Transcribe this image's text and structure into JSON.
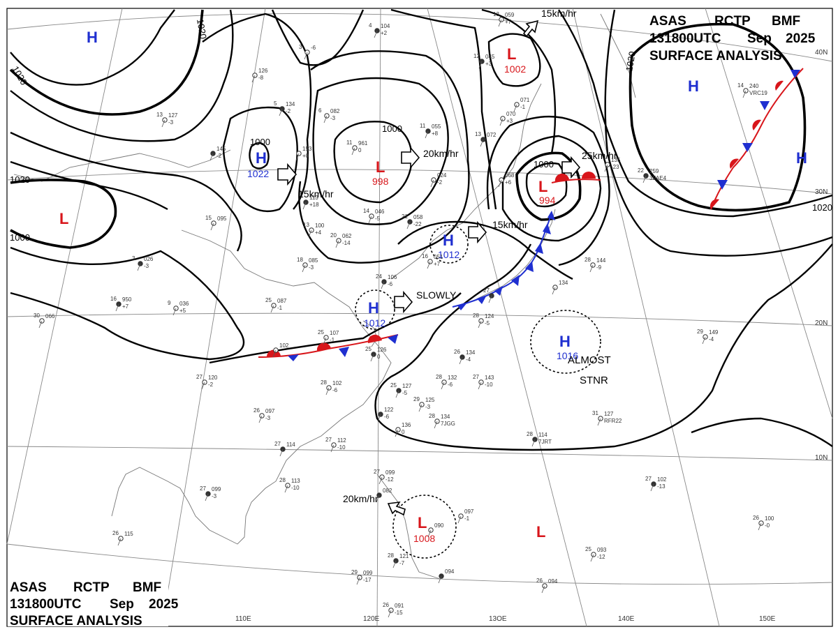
{
  "header": {
    "line1": [
      "ASAS",
      "RCTP",
      "BMF"
    ],
    "line2": [
      "131800UTC",
      "Sep",
      "2025"
    ],
    "line3": "SURFACE ANALYSIS"
  },
  "colors": {
    "high": "#1f2fd0",
    "low": "#d8161b",
    "isobar": "#000000",
    "grid": "#888888",
    "coast": "#777777"
  },
  "axes": {
    "longitude_labels": [
      "110E",
      "120E",
      "13OE",
      "140E",
      "150E"
    ],
    "latitude_labels": [
      "40N",
      "30N",
      "20N",
      "10N"
    ]
  },
  "isobar_labels": [
    "1020",
    "1020",
    "1000",
    "1000",
    "1020",
    "1000",
    "1000",
    "1020",
    "1020"
  ],
  "pressure_centers": [
    {
      "type": "H",
      "value": ""
    },
    {
      "type": "H",
      "value": "1022"
    },
    {
      "type": "L",
      "value": ""
    },
    {
      "type": "L",
      "value": "998"
    },
    {
      "type": "L",
      "value": "1002"
    },
    {
      "type": "L",
      "value": "994"
    },
    {
      "type": "H",
      "value": ""
    },
    {
      "type": "H",
      "value": ""
    },
    {
      "type": "H",
      "value": "1012"
    },
    {
      "type": "H",
      "value": "1012"
    },
    {
      "type": "H",
      "value": "1016"
    },
    {
      "type": "L",
      "value": "1008"
    },
    {
      "type": "L",
      "value": ""
    }
  ],
  "movements": [
    "15km/hr",
    "20km/hr",
    "15km/hr",
    "25km/hr",
    "15km/hr",
    "SLOWLY",
    "20km/hr"
  ],
  "annotations": [
    "ALMOST",
    "STNR"
  ],
  "stations": [
    {
      "top": "4",
      "mid": "104",
      "bot": "+2"
    },
    {
      "top": "3",
      "mid": "-6",
      "bot": ""
    },
    {
      "top": "",
      "mid": "126",
      "bot": "-8"
    },
    {
      "top": "5",
      "mid": "134",
      "bot": "-2"
    },
    {
      "top": "6",
      "mid": "082",
      "bot": "-3"
    },
    {
      "top": "13",
      "mid": "127",
      "bot": "-3"
    },
    {
      "top": "",
      "mid": "145",
      "bot": "-2"
    },
    {
      "top": "",
      "mid": "153",
      "bot": "+0"
    },
    {
      "top": "11",
      "mid": "961",
      "bot": "0"
    },
    {
      "top": "11",
      "mid": "055",
      "bot": "+8"
    },
    {
      "top": "",
      "mid": "024",
      "bot": "-2"
    },
    {
      "top": "13",
      "mid": "059",
      "bot": "+7"
    },
    {
      "top": "12",
      "mid": "045",
      "bot": "+3"
    },
    {
      "top": "",
      "mid": "070",
      "bot": "+3"
    },
    {
      "top": "",
      "mid": "071",
      "bot": "-1"
    },
    {
      "top": "13",
      "mid": "072",
      "bot": ""
    },
    {
      "top": "",
      "mid": "068",
      "bot": "+6"
    },
    {
      "top": "",
      "mid": "135",
      "bot": "-23"
    },
    {
      "top": "22",
      "mid": "259",
      "bot": "3FAE4"
    },
    {
      "top": "14",
      "mid": "240",
      "bot": "VRC19"
    },
    {
      "top": "15",
      "mid": "095",
      "bot": ""
    },
    {
      "top": "",
      "mid": "113",
      "bot": "+18"
    },
    {
      "top": "13",
      "mid": "100",
      "bot": "+4"
    },
    {
      "top": "14",
      "mid": "046",
      "bot": "-5"
    },
    {
      "top": "21",
      "mid": "058",
      "bot": "-22"
    },
    {
      "top": "20",
      "mid": "062",
      "bot": "-14"
    },
    {
      "top": "16",
      "mid": "051",
      "bot": "+7"
    },
    {
      "top": "3",
      "mid": "026",
      "bot": "-3"
    },
    {
      "top": "18",
      "mid": "085",
      "bot": "-3"
    },
    {
      "top": "9",
      "mid": "036",
      "bot": "+5"
    },
    {
      "top": "16",
      "mid": "950",
      "bot": "+7"
    },
    {
      "top": "30",
      "mid": "066",
      "bot": ""
    },
    {
      "top": "25",
      "mid": "087",
      "bot": "-1"
    },
    {
      "top": "24",
      "mid": "106",
      "bot": "-6"
    },
    {
      "top": "25",
      "mid": "107",
      "bot": "-1"
    },
    {
      "top": "",
      "mid": "102",
      "bot": ""
    },
    {
      "top": "25",
      "mid": "126",
      "bot": "0"
    },
    {
      "top": "27",
      "mid": "120",
      "bot": "-2"
    },
    {
      "top": "28",
      "mid": "102",
      "bot": "-6"
    },
    {
      "top": "26",
      "mid": "134",
      "bot": "-4"
    },
    {
      "top": "28",
      "mid": "132",
      "bot": "-6"
    },
    {
      "top": "27",
      "mid": "143",
      "bot": "-10"
    },
    {
      "top": "25",
      "mid": "127",
      "bot": "-5"
    },
    {
      "top": "29",
      "mid": "125",
      "bot": "-3"
    },
    {
      "top": "28",
      "mid": "134",
      "bot": "7JGG"
    },
    {
      "top": "",
      "mid": "122",
      "bot": "-6"
    },
    {
      "top": "",
      "mid": "136",
      "bot": "0"
    },
    {
      "top": "26",
      "mid": "097",
      "bot": "-3"
    },
    {
      "top": "27",
      "mid": "114",
      "bot": ""
    },
    {
      "top": "27",
      "mid": "112",
      "bot": "-10"
    },
    {
      "top": "28",
      "mid": "113",
      "bot": "-10"
    },
    {
      "top": "27",
      "mid": "099",
      "bot": "-3"
    },
    {
      "top": "26",
      "mid": "115",
      "bot": ""
    },
    {
      "top": "27",
      "mid": "099",
      "bot": "-12"
    },
    {
      "top": "",
      "mid": "082",
      "bot": ""
    },
    {
      "top": "",
      "mid": "090",
      "bot": ""
    },
    {
      "top": "",
      "mid": "097",
      "bot": "-1"
    },
    {
      "top": "28",
      "mid": "121",
      "bot": "-7"
    },
    {
      "top": "29",
      "mid": "099",
      "bot": "-17"
    },
    {
      "top": "26",
      "mid": "091",
      "bot": "-15"
    },
    {
      "top": "",
      "mid": "094",
      "bot": ""
    },
    {
      "top": "26",
      "mid": "094",
      "bot": ""
    },
    {
      "top": "28",
      "mid": "144",
      "bot": "-9"
    },
    {
      "top": "28",
      "mid": "114",
      "bot": "7JRT"
    },
    {
      "top": "31",
      "mid": "127",
      "bot": "RFR22"
    },
    {
      "top": "29",
      "mid": "149",
      "bot": "-4"
    },
    {
      "top": "27",
      "mid": "102",
      "bot": "-13"
    },
    {
      "top": "26",
      "mid": "100",
      "bot": "-0"
    },
    {
      "top": "25",
      "mid": "093",
      "bot": "-12"
    },
    {
      "top": "27",
      "mid": "",
      "bot": ""
    },
    {
      "top": "28",
      "mid": "124",
      "bot": "-5"
    },
    {
      "top": "",
      "mid": "134",
      "bot": ""
    }
  ]
}
